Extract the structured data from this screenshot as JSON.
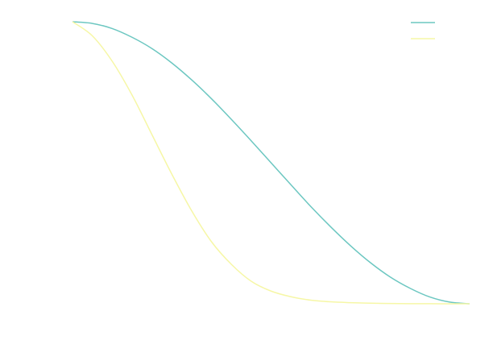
{
  "chart_data": {
    "type": "line",
    "title": "",
    "xlabel": "",
    "ylabel": "",
    "xlim": [
      0,
      1
    ],
    "ylim": [
      0,
      1
    ],
    "grid": false,
    "axes_visible": false,
    "legend": {
      "placement": "top-right",
      "entries": [
        {
          "label": "",
          "color": "#6cc7c1"
        },
        {
          "label": "",
          "color": "#f6f7a6"
        }
      ]
    },
    "series": [
      {
        "color": "#6cc7c1",
        "points": [
          [
            0.0,
            1.0
          ],
          [
            0.05,
            0.994
          ],
          [
            0.1,
            0.976
          ],
          [
            0.15,
            0.945
          ],
          [
            0.2,
            0.905
          ],
          [
            0.25,
            0.854
          ],
          [
            0.3,
            0.794
          ],
          [
            0.35,
            0.727
          ],
          [
            0.4,
            0.654
          ],
          [
            0.45,
            0.578
          ],
          [
            0.5,
            0.5
          ],
          [
            0.55,
            0.422
          ],
          [
            0.6,
            0.345
          ],
          [
            0.65,
            0.273
          ],
          [
            0.7,
            0.206
          ],
          [
            0.75,
            0.146
          ],
          [
            0.8,
            0.095
          ],
          [
            0.85,
            0.055
          ],
          [
            0.9,
            0.024
          ],
          [
            0.95,
            0.006
          ],
          [
            1.0,
            0.0
          ]
        ]
      },
      {
        "color": "#f6f7a6",
        "points": [
          [
            0.0,
            1.0
          ],
          [
            0.05,
            0.95
          ],
          [
            0.1,
            0.86
          ],
          [
            0.15,
            0.74
          ],
          [
            0.2,
            0.6
          ],
          [
            0.25,
            0.46
          ],
          [
            0.3,
            0.33
          ],
          [
            0.35,
            0.22
          ],
          [
            0.4,
            0.14
          ],
          [
            0.45,
            0.08
          ],
          [
            0.5,
            0.045
          ],
          [
            0.55,
            0.025
          ],
          [
            0.6,
            0.013
          ],
          [
            0.65,
            0.007
          ],
          [
            0.7,
            0.004
          ],
          [
            0.75,
            0.002
          ],
          [
            0.8,
            0.001
          ],
          [
            0.85,
            0.0005
          ],
          [
            0.9,
            0.0002
          ],
          [
            0.95,
            0.0001
          ],
          [
            1.0,
            0.0
          ]
        ]
      }
    ]
  }
}
